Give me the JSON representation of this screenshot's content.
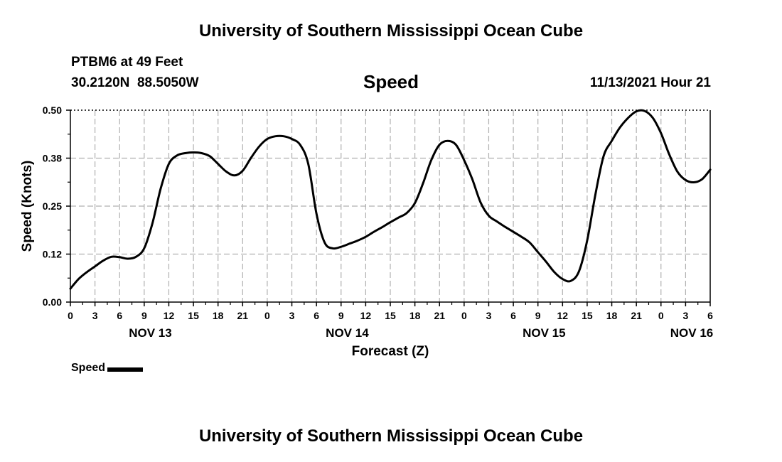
{
  "header": {
    "title": "University of Southern Mississippi Ocean Cube",
    "station": "PTBM6 at 49 Feet",
    "coordinates": "30.2120N  88.5050W",
    "variable": "Speed",
    "timestamp": "11/13/2021 Hour 21"
  },
  "footer": {
    "title": "University of Southern Mississippi Ocean Cube"
  },
  "legend": {
    "label": "Speed"
  },
  "chart_data": {
    "type": "line",
    "title": "Speed",
    "xlabel": "Forecast (Z)",
    "ylabel": "Speed (Knots)",
    "ylim": [
      0,
      0.5
    ],
    "xlim_hours": [
      0,
      78
    ],
    "y_ticks": [
      "0.00",
      "0.12",
      "0.25",
      "0.38",
      "0.50"
    ],
    "y_tick_values": [
      0,
      0.125,
      0.25,
      0.375,
      0.5
    ],
    "x_tick_labels": [
      "0",
      "3",
      "6",
      "9",
      "12",
      "15",
      "18",
      "21",
      "0",
      "3",
      "6",
      "9",
      "12",
      "15",
      "18",
      "21",
      "0",
      "3",
      "6",
      "9",
      "12",
      "15",
      "18",
      "21",
      "0",
      "3",
      "6"
    ],
    "date_labels": [
      {
        "label": "NOV 13",
        "hour": 9.75
      },
      {
        "label": "NOV 14",
        "hour": 33.75
      },
      {
        "label": "NOV 15",
        "hour": 57.75
      },
      {
        "label": "NOV 16",
        "hour": 75.75
      }
    ],
    "grid": true,
    "series": [
      {
        "name": "Speed",
        "color": "#000000",
        "x": [
          0,
          1,
          2,
          3,
          4,
          5,
          6,
          7,
          8,
          9,
          10,
          11,
          12,
          13,
          14,
          15,
          16,
          17,
          18,
          19,
          20,
          21,
          22,
          23,
          24,
          25,
          26,
          27,
          28,
          29,
          30,
          31,
          32,
          33,
          34,
          35,
          36,
          37,
          38,
          39,
          40,
          41,
          42,
          43,
          44,
          45,
          46,
          47,
          48,
          49,
          50,
          51,
          52,
          53,
          54,
          55,
          56,
          57,
          58,
          59,
          60,
          61,
          62,
          63,
          64,
          65,
          66,
          67,
          68,
          69,
          70,
          71,
          72,
          73,
          74,
          75,
          76,
          77,
          78
        ],
        "values": [
          0.035,
          0.06,
          0.078,
          0.093,
          0.108,
          0.118,
          0.117,
          0.113,
          0.118,
          0.14,
          0.205,
          0.295,
          0.36,
          0.382,
          0.388,
          0.39,
          0.388,
          0.38,
          0.36,
          0.34,
          0.33,
          0.342,
          0.375,
          0.405,
          0.425,
          0.432,
          0.432,
          0.425,
          0.41,
          0.36,
          0.23,
          0.155,
          0.14,
          0.144,
          0.152,
          0.16,
          0.17,
          0.183,
          0.195,
          0.208,
          0.22,
          0.232,
          0.258,
          0.31,
          0.37,
          0.41,
          0.42,
          0.41,
          0.37,
          0.32,
          0.26,
          0.225,
          0.21,
          0.196,
          0.183,
          0.17,
          0.155,
          0.13,
          0.105,
          0.078,
          0.06,
          0.055,
          0.08,
          0.16,
          0.28,
          0.38,
          0.42,
          0.455,
          0.48,
          0.497,
          0.498,
          0.48,
          0.44,
          0.385,
          0.34,
          0.318,
          0.312,
          0.32,
          0.345
        ]
      }
    ]
  }
}
